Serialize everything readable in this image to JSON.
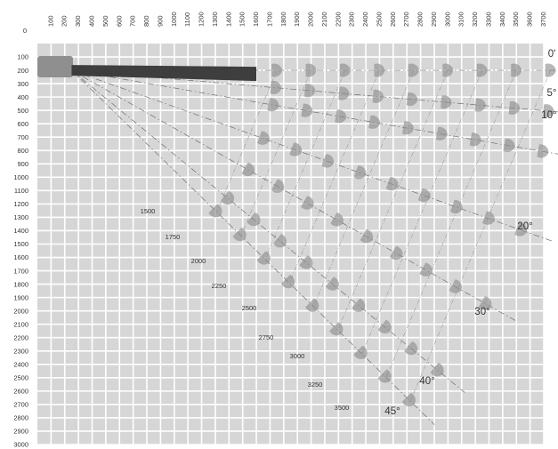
{
  "colors": {
    "grid_bg": "#d6d6d6",
    "grid_line": "#ffffff",
    "label": "#333333",
    "lamp": "#8f8f8f",
    "arm": "#3e3e3e"
  },
  "origin_label": "0",
  "x_ticks": [
    100,
    200,
    300,
    400,
    500,
    600,
    700,
    800,
    900,
    1000,
    1100,
    1200,
    1300,
    1400,
    1500,
    1600,
    1700,
    1800,
    1900,
    2000,
    2100,
    2200,
    2300,
    2400,
    2500,
    2600,
    2700,
    2800,
    2900,
    3000,
    3100,
    3200,
    3300,
    3400,
    3500,
    3600,
    3700
  ],
  "y_ticks": [
    100,
    200,
    300,
    400,
    500,
    600,
    700,
    800,
    900,
    1000,
    1100,
    1200,
    1300,
    1400,
    1500,
    1600,
    1700,
    1800,
    1900,
    2000,
    2100,
    2200,
    2300,
    2400,
    2500,
    2600,
    2700,
    2800,
    2900,
    3000
  ],
  "x_range": [
    0,
    3700
  ],
  "y_range": [
    0,
    3000
  ],
  "angles": [
    {
      "label": "0'",
      "deg": 0
    },
    {
      "label": "5°",
      "deg": 5
    },
    {
      "label": "10°",
      "deg": 10
    },
    {
      "label": "20°",
      "deg": 20
    },
    {
      "label": "30°",
      "deg": 30
    },
    {
      "label": "40°",
      "deg": 40
    },
    {
      "label": "45°",
      "deg": 45
    }
  ],
  "lengths": [
    "1500",
    "1750",
    "2000",
    "2250",
    "2500",
    "2750",
    "3000",
    "3250",
    "3500"
  ],
  "length_values": [
    1500,
    1750,
    2000,
    2250,
    2500,
    2750,
    3000,
    3250,
    3500
  ]
}
